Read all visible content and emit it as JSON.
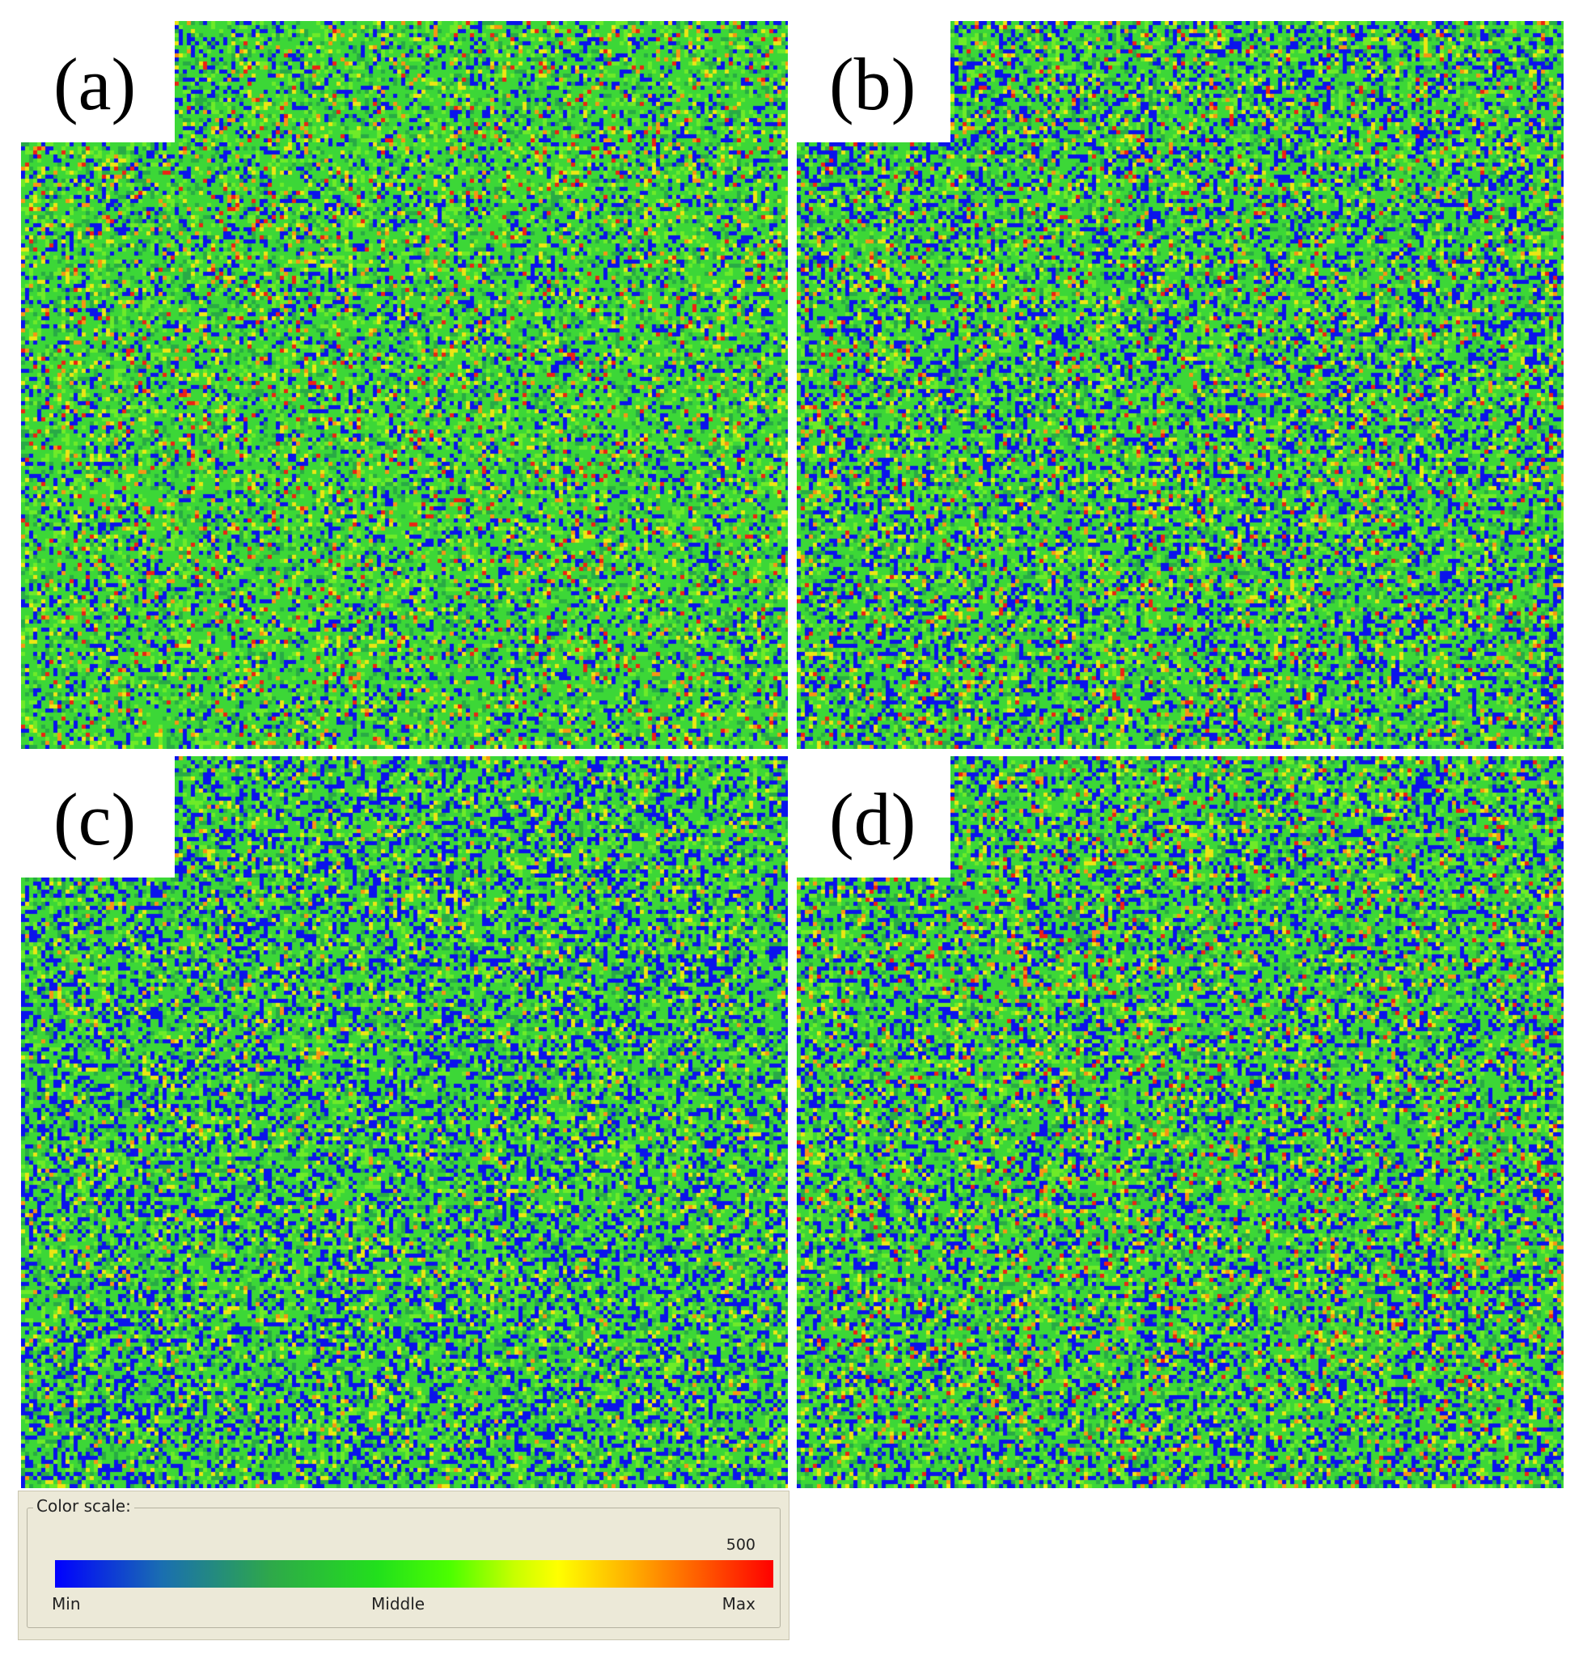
{
  "panels": [
    {
      "id": "a",
      "label": "(a)"
    },
    {
      "id": "b",
      "label": "(b)"
    },
    {
      "id": "c",
      "label": "(c)"
    },
    {
      "id": "d",
      "label": "(d)"
    }
  ],
  "color_scale": {
    "title": "Color scale:",
    "max_value": "500",
    "min_label": "Min",
    "mid_label": "Middle",
    "max_label": "Max",
    "colors": [
      "#0000ff",
      "#22e01c",
      "#ffff00",
      "#ff0000"
    ]
  }
}
